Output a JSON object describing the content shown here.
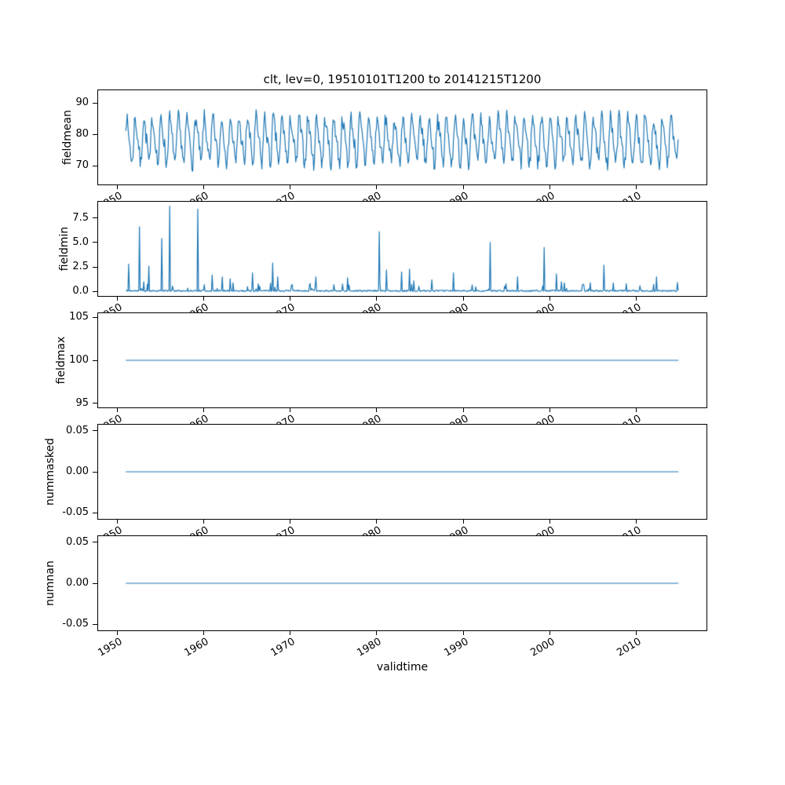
{
  "figure": {
    "background": "#ffffff",
    "text_color": "#000000",
    "axis_color": "#000000"
  },
  "chart_data": {
    "type": "line",
    "title": "clt, lev=0, 19510101T1200 to 20141215T1200",
    "xlabel": "validtime",
    "legend": "none",
    "grid": false,
    "line_color": "#1f77b4",
    "x_range": [
      1947.8,
      2018.2
    ],
    "x_data_range": [
      1951.0,
      2014.96
    ],
    "x_ticks": {
      "values": [
        1950,
        1960,
        1970,
        1980,
        1990,
        2000,
        2010
      ],
      "labels": [
        "1950",
        "1960",
        "1970",
        "1980",
        "1990",
        "2000",
        "2010"
      ]
    },
    "subplots": [
      {
        "ylabel": "fieldmean",
        "ylim": [
          64,
          94
        ],
        "yticks": {
          "values": [
            70,
            80,
            90
          ],
          "labels": [
            "70",
            "80",
            "90"
          ]
        },
        "series": {
          "kind": "seasonal",
          "mean": 78,
          "amplitude": 6.5,
          "second_harmonic": 2.0,
          "noise": 2.6,
          "points_per_year": 12,
          "seed": 7,
          "approx_min": 65,
          "approx_max": 92
        }
      },
      {
        "ylabel": "fieldmin",
        "ylim": [
          -0.45,
          9.15
        ],
        "yticks": {
          "values": [
            0.0,
            2.5,
            5.0,
            7.5
          ],
          "labels": [
            "0.0",
            "2.5",
            "5.0",
            "7.5"
          ]
        },
        "series": {
          "kind": "spikes",
          "baseline_max": 0.15,
          "seed": 11,
          "spikes": [
            [
              1951.3,
              2.8
            ],
            [
              1952.6,
              6.6
            ],
            [
              1953.1,
              1.0
            ],
            [
              1953.7,
              2.6
            ],
            [
              1955.2,
              5.4
            ],
            [
              1956.1,
              8.7
            ],
            [
              1959.3,
              8.4
            ],
            [
              1960.1,
              0.7
            ],
            [
              1961.0,
              1.7
            ],
            [
              1962.2,
              1.5
            ],
            [
              1963.1,
              1.3
            ],
            [
              1965.7,
              1.9
            ],
            [
              1966.3,
              0.8
            ],
            [
              1968.0,
              2.9
            ],
            [
              1968.6,
              1.5
            ],
            [
              1970.2,
              0.6
            ],
            [
              1973.0,
              1.5
            ],
            [
              1975.1,
              0.7
            ],
            [
              1976.7,
              1.4
            ],
            [
              1980.3,
              6.1
            ],
            [
              1981.2,
              2.2
            ],
            [
              1982.9,
              2.0
            ],
            [
              1983.8,
              2.3
            ],
            [
              1984.3,
              1.1
            ],
            [
              1986.4,
              1.2
            ],
            [
              1988.9,
              1.9
            ],
            [
              1993.2,
              5.0
            ],
            [
              1996.3,
              1.5
            ],
            [
              1999.4,
              4.5
            ],
            [
              2000.8,
              1.8
            ],
            [
              2001.4,
              1.0
            ],
            [
              2004.0,
              0.7
            ],
            [
              2006.3,
              2.7
            ],
            [
              2008.9,
              0.8
            ],
            [
              2010.5,
              0.6
            ],
            [
              2012.4,
              1.5
            ]
          ]
        }
      },
      {
        "ylabel": "fieldmax",
        "ylim": [
          94.5,
          105.5
        ],
        "yticks": {
          "values": [
            95,
            100,
            105
          ],
          "labels": [
            "95",
            "100",
            "105"
          ]
        },
        "series": {
          "kind": "constant",
          "value": 100
        }
      },
      {
        "ylabel": "nummasked",
        "ylim": [
          -0.0575,
          0.0575
        ],
        "yticks": {
          "values": [
            -0.05,
            0,
            0.05
          ],
          "labels": [
            "-0.05",
            "0.00",
            "0.05"
          ]
        },
        "series": {
          "kind": "constant",
          "value": 0
        }
      },
      {
        "ylabel": "numnan",
        "ylim": [
          -0.0575,
          0.0575
        ],
        "yticks": {
          "values": [
            -0.05,
            0,
            0.05
          ],
          "labels": [
            "-0.05",
            "0.00",
            "0.05"
          ]
        },
        "series": {
          "kind": "constant",
          "value": 0
        }
      }
    ]
  }
}
